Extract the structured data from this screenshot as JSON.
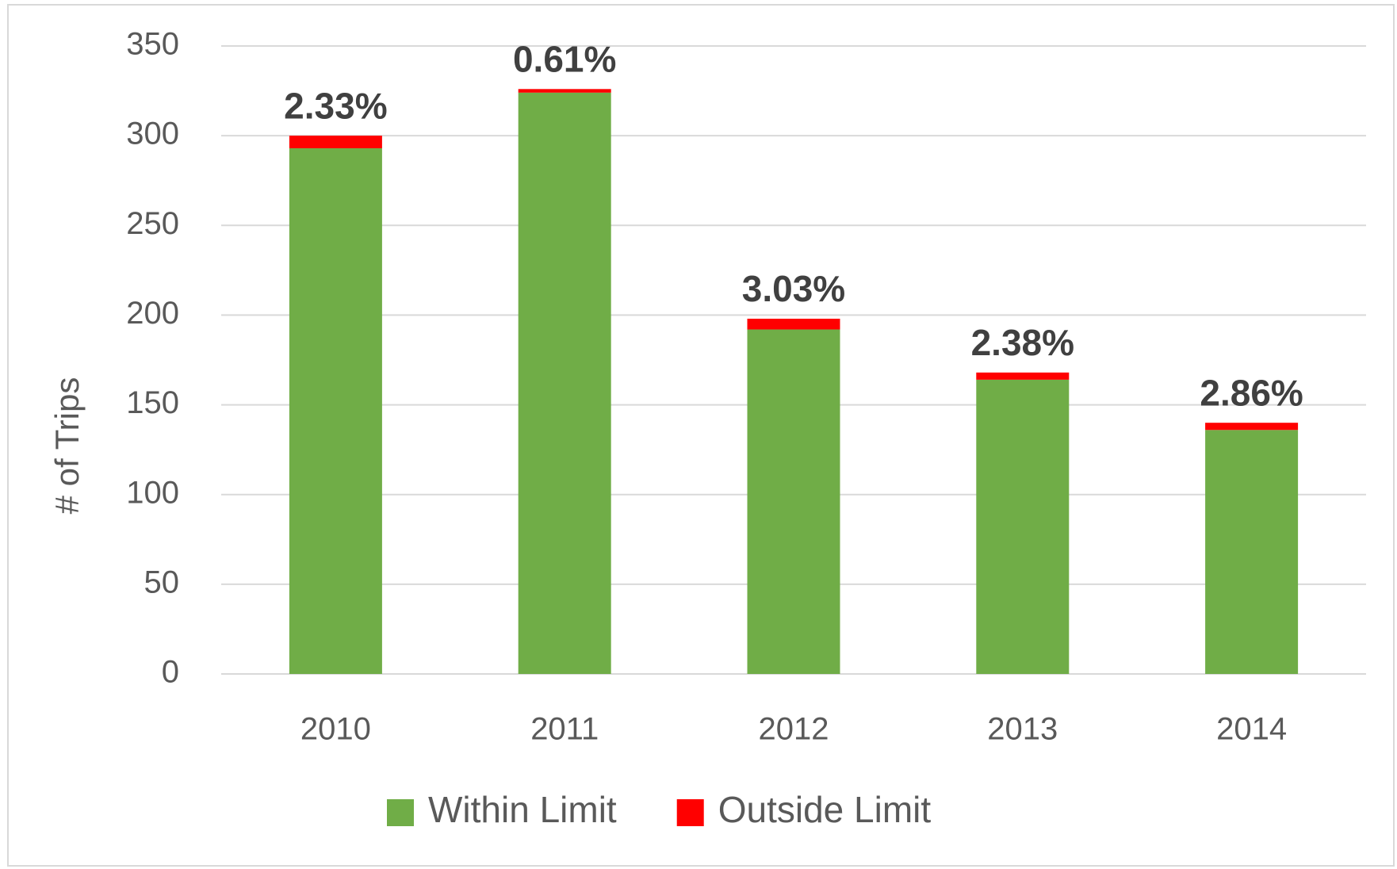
{
  "chart_data": {
    "type": "stacked-bar",
    "y_label": "# of Trips",
    "categories": [
      "2010",
      "2011",
      "2012",
      "2013",
      "2014"
    ],
    "series": [
      {
        "name": "Within Limit",
        "color": "#70ad47",
        "values": [
          293,
          324,
          192,
          164,
          136
        ]
      },
      {
        "name": "Outside Limit",
        "color": "#ff0000",
        "values": [
          7,
          2,
          6,
          4,
          4
        ]
      }
    ],
    "annotations": [
      "2.33%",
      "0.61%",
      "3.03%",
      "2.38%",
      "2.86%"
    ],
    "ylim": [
      0,
      350
    ],
    "yticks": [
      0,
      50,
      100,
      150,
      200,
      250,
      300,
      350
    ],
    "grid": true,
    "legend": "bottom"
  }
}
